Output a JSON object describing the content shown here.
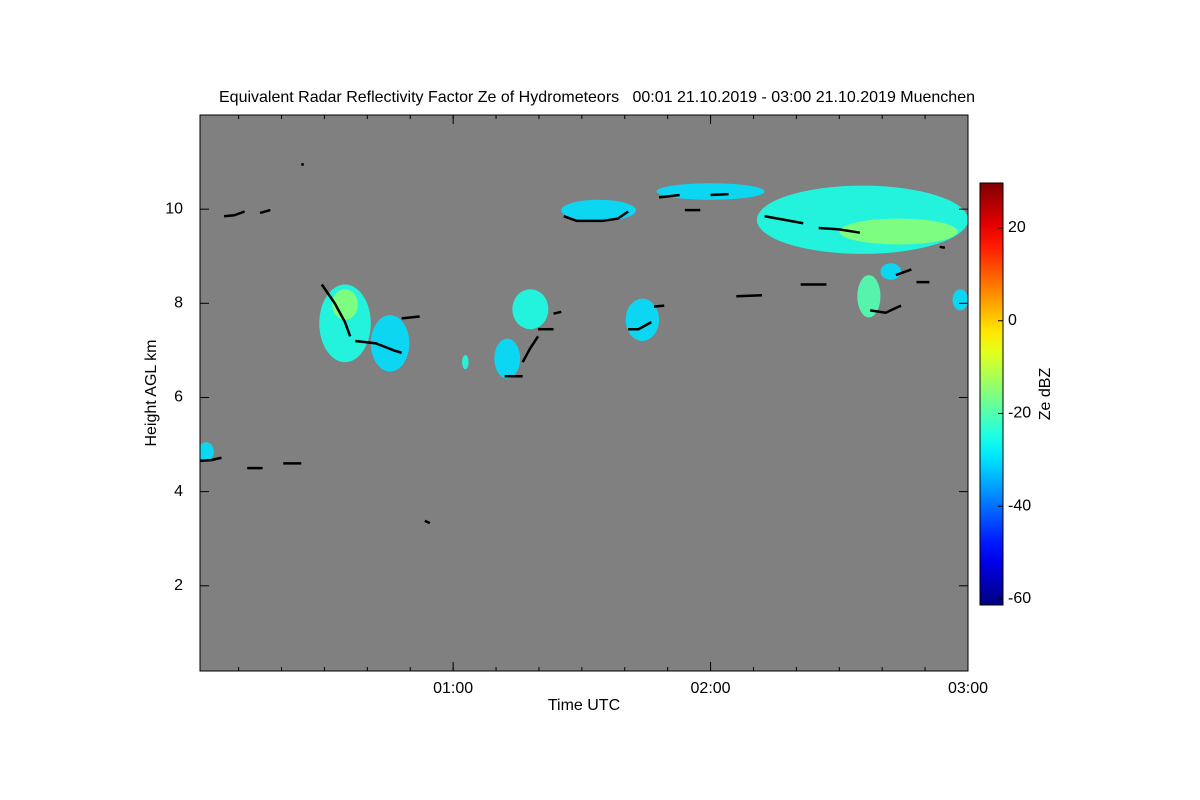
{
  "chart_data": {
    "type": "heatmap",
    "title": "Equivalent Radar Reflectivity Factor Ze of Hydrometeors   00:01 21.10.2019 - 03:00 21.10.2019 Muenchen",
    "x_label": "Time UTC",
    "y_label": "Height AGL km",
    "colorbar_label": "Ze dBZ",
    "colormap": "jet",
    "background": "#808080",
    "xlim": [
      0.0167,
      3.0
    ],
    "xticks": [
      {
        "value": 1,
        "label": "01:00"
      },
      {
        "value": 2,
        "label": "02:00"
      },
      {
        "value": 3,
        "label": "03:00"
      }
    ],
    "ylim": [
      0.19,
      12.0
    ],
    "yticks": [
      2,
      4,
      6,
      8,
      10
    ],
    "clim": [
      -61.3,
      29.7
    ],
    "cticks": [
      -60,
      -40,
      -20,
      0,
      20
    ],
    "echoes": [
      {
        "t": [
          2.18,
          3.0
        ],
        "h": [
          9.05,
          10.5
        ],
        "ze": -25
      },
      {
        "t": [
          2.5,
          2.96
        ],
        "h": [
          9.25,
          9.8
        ],
        "ze": -15
      },
      {
        "t": [
          1.42,
          1.71
        ],
        "h": [
          9.75,
          10.2
        ],
        "ze": -30
      },
      {
        "t": [
          1.79,
          2.21
        ],
        "h": [
          10.2,
          10.55
        ],
        "ze": -30
      },
      {
        "t": [
          0.48,
          0.68
        ],
        "h": [
          6.75,
          8.4
        ],
        "ze": -25
      },
      {
        "t": [
          0.53,
          0.63
        ],
        "h": [
          7.65,
          8.3
        ],
        "ze": -15
      },
      {
        "t": [
          0.68,
          0.83
        ],
        "h": [
          6.55,
          7.75
        ],
        "ze": -30
      },
      {
        "t": [
          1.23,
          1.37
        ],
        "h": [
          7.45,
          8.3
        ],
        "ze": -25
      },
      {
        "t": [
          1.16,
          1.26
        ],
        "h": [
          6.4,
          7.25
        ],
        "ze": -30
      },
      {
        "t": [
          1.67,
          1.8
        ],
        "h": [
          7.2,
          8.1
        ],
        "ze": -30
      },
      {
        "t": [
          2.57,
          2.66
        ],
        "h": [
          7.7,
          8.6
        ],
        "ze": -20
      },
      {
        "t": [
          2.66,
          2.74
        ],
        "h": [
          8.5,
          8.85
        ],
        "ze": -30
      },
      {
        "t": [
          2.94,
          3.0
        ],
        "h": [
          7.85,
          8.3
        ],
        "ze": -30
      },
      {
        "t": [
          0.01,
          0.07
        ],
        "h": [
          4.65,
          5.05
        ],
        "ze": -30
      },
      {
        "t": [
          1.035,
          1.06
        ],
        "h": [
          6.6,
          6.9
        ],
        "ze": -25
      }
    ],
    "cloud_base": [
      {
        "x": [
          0.11,
          0.15,
          0.19
        ],
        "y": [
          9.85,
          9.87,
          9.95
        ]
      },
      {
        "x": [
          0.25,
          0.29
        ],
        "y": [
          9.92,
          9.98
        ]
      },
      {
        "x": [
          0.41,
          0.42
        ],
        "y": [
          10.95,
          10.95
        ]
      },
      {
        "x": [
          0.49,
          0.54,
          0.58,
          0.6
        ],
        "y": [
          8.4,
          8.0,
          7.6,
          7.3
        ]
      },
      {
        "x": [
          0.62,
          0.7,
          0.77,
          0.8
        ],
        "y": [
          7.2,
          7.15,
          7.0,
          6.95
        ]
      },
      {
        "x": [
          0.8,
          0.87
        ],
        "y": [
          7.68,
          7.72
        ]
      },
      {
        "x": [
          0.01,
          0.06,
          0.1
        ],
        "y": [
          4.65,
          4.67,
          4.72
        ]
      },
      {
        "x": [
          0.2,
          0.26
        ],
        "y": [
          4.5,
          4.5
        ]
      },
      {
        "x": [
          0.34,
          0.41
        ],
        "y": [
          4.6,
          4.6
        ]
      },
      {
        "x": [
          0.89,
          0.91
        ],
        "y": [
          3.38,
          3.33
        ]
      },
      {
        "x": [
          1.2,
          1.27
        ],
        "y": [
          6.45,
          6.45
        ]
      },
      {
        "x": [
          1.27,
          1.3,
          1.33
        ],
        "y": [
          6.75,
          7.05,
          7.3
        ]
      },
      {
        "x": [
          1.33,
          1.39
        ],
        "y": [
          7.45,
          7.45
        ]
      },
      {
        "x": [
          1.39,
          1.42
        ],
        "y": [
          7.78,
          7.82
        ]
      },
      {
        "x": [
          1.43,
          1.48,
          1.58,
          1.64,
          1.68
        ],
        "y": [
          9.85,
          9.75,
          9.75,
          9.8,
          9.95
        ]
      },
      {
        "x": [
          1.68,
          1.72,
          1.77
        ],
        "y": [
          7.45,
          7.45,
          7.6
        ]
      },
      {
        "x": [
          1.78,
          1.82
        ],
        "y": [
          7.93,
          7.95
        ]
      },
      {
        "x": [
          1.8,
          1.88
        ],
        "y": [
          10.25,
          10.3
        ]
      },
      {
        "x": [
          1.9,
          1.96
        ],
        "y": [
          9.98,
          9.98
        ]
      },
      {
        "x": [
          2.0,
          2.07
        ],
        "y": [
          10.3,
          10.32
        ]
      },
      {
        "x": [
          2.1,
          2.2
        ],
        "y": [
          8.15,
          8.17
        ]
      },
      {
        "x": [
          2.21,
          2.28,
          2.36
        ],
        "y": [
          9.85,
          9.78,
          9.7
        ]
      },
      {
        "x": [
          2.35,
          2.45
        ],
        "y": [
          8.4,
          8.4
        ]
      },
      {
        "x": [
          2.42,
          2.5,
          2.58
        ],
        "y": [
          9.6,
          9.57,
          9.5
        ]
      },
      {
        "x": [
          2.62,
          2.68,
          2.74
        ],
        "y": [
          7.85,
          7.8,
          7.95
        ]
      },
      {
        "x": [
          2.72,
          2.78
        ],
        "y": [
          8.6,
          8.72
        ]
      },
      {
        "x": [
          2.8,
          2.85
        ],
        "y": [
          8.45,
          8.45
        ]
      },
      {
        "x": [
          2.89,
          2.91
        ],
        "y": [
          9.2,
          9.18
        ]
      }
    ]
  }
}
